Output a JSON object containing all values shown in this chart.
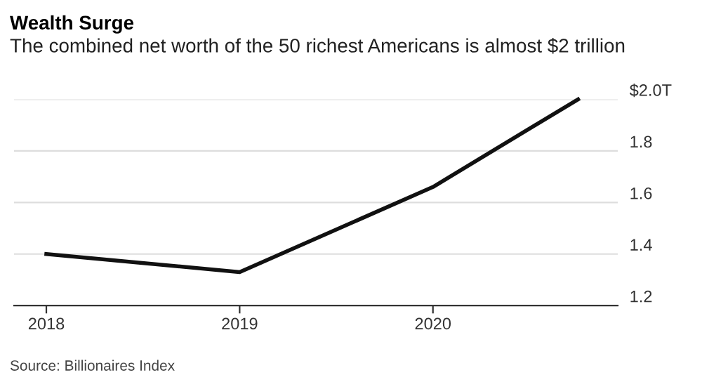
{
  "chart_data": {
    "type": "line",
    "title": "Wealth Surge",
    "subtitle": "The combined net worth of the 50 richest Americans is almost $2 trillion",
    "x": [
      "2018",
      "2019",
      "2020",
      "2020-10"
    ],
    "series": [
      {
        "color": "#111111",
        "values": [
          1.4,
          1.33,
          1.66,
          2.0
        ]
      }
    ],
    "xlim": [
      "2017-11",
      "2020-12-15"
    ],
    "xticks": [
      {
        "value": "2018",
        "label": "2018"
      },
      {
        "value": "2019",
        "label": "2019"
      },
      {
        "value": "2020",
        "label": "2020"
      }
    ],
    "ylim": [
      1.2,
      2.0
    ],
    "yticks": [
      1.2,
      1.4,
      1.6,
      1.8,
      {
        "value": 2.0,
        "label": "$2.0T"
      }
    ],
    "grid": "y",
    "marker": "none",
    "line_style": "solid",
    "annotations": [
      "Source: Billionaires Index"
    ]
  }
}
